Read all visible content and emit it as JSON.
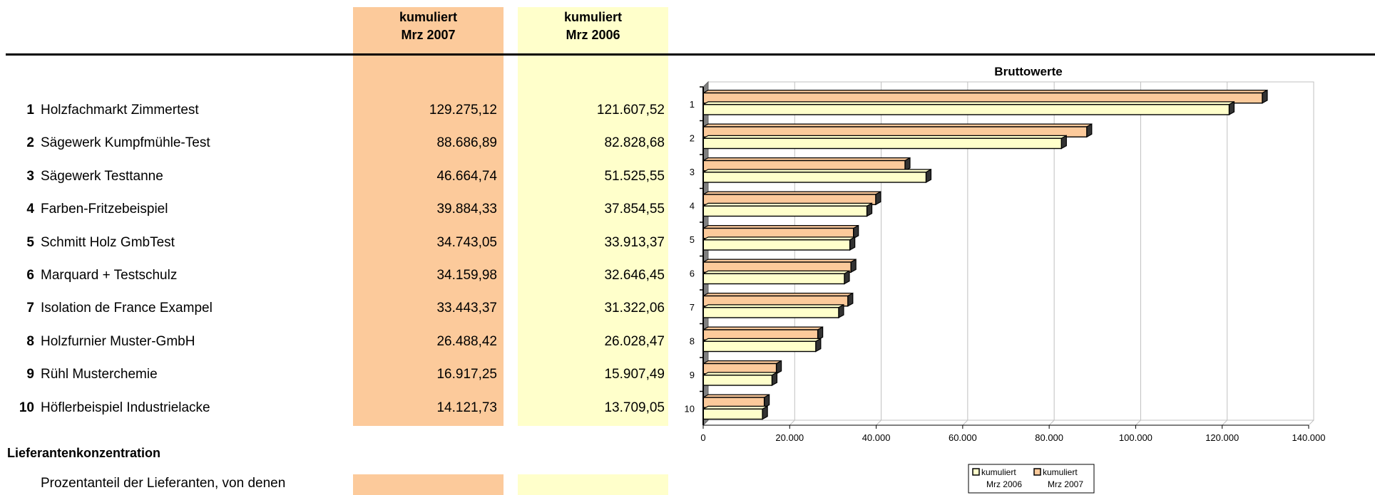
{
  "columns": {
    "col_2007": {
      "line1": "kumuliert",
      "line2": "Mrz 2007"
    },
    "col_2006": {
      "line1": "kumuliert",
      "line2": "Mrz 2006"
    }
  },
  "rows": [
    {
      "rank": "1",
      "name": "Holzfachmarkt Zimmertest",
      "v2007": "129.275,12",
      "v2006": "121.607,52"
    },
    {
      "rank": "2",
      "name": "Sägewerk Kumpfmühle-Test",
      "v2007": "88.686,89",
      "v2006": "82.828,68"
    },
    {
      "rank": "3",
      "name": "Sägewerk Testtanne",
      "v2007": "46.664,74",
      "v2006": "51.525,55"
    },
    {
      "rank": "4",
      "name": "Farben-Fritzebeispiel",
      "v2007": "39.884,33",
      "v2006": "37.854,55"
    },
    {
      "rank": "5",
      "name": "Schmitt Holz GmbTest",
      "v2007": "34.743,05",
      "v2006": "33.913,37"
    },
    {
      "rank": "6",
      "name": "Marquard + Testschulz",
      "v2007": "34.159,98",
      "v2006": "32.646,45"
    },
    {
      "rank": "7",
      "name": "Isolation de France Exampel",
      "v2007": "33.443,37",
      "v2006": "31.322,06"
    },
    {
      "rank": "8",
      "name": "Holzfurnier Muster-GmbH",
      "v2007": "26.488,42",
      "v2006": "26.028,47"
    },
    {
      "rank": "9",
      "name": "Rühl Musterchemie",
      "v2007": "16.917,25",
      "v2006": "15.907,49"
    },
    {
      "rank": "10",
      "name": "Höflerbeispiel Industrielacke",
      "v2007": "14.121,73",
      "v2006": "13.709,05"
    }
  ],
  "section_title": "Lieferantenkonzentration",
  "section_text": "Prozentanteil der Lieferanten, von denen",
  "colors": {
    "series_2007": "#fcca9b",
    "series_2006": "#ffffcb",
    "grid": "#c0c0c0"
  },
  "chart_data": {
    "type": "bar",
    "orientation": "horizontal",
    "title": "Bruttowerte",
    "categories": [
      "1",
      "2",
      "3",
      "4",
      "5",
      "6",
      "7",
      "8",
      "9",
      "10"
    ],
    "series": [
      {
        "name": "kumuliert Mrz 2007",
        "legend_line1": "kumuliert",
        "legend_line2": "Mrz 2007",
        "values": [
          129275.12,
          88686.89,
          46664.74,
          39884.33,
          34743.05,
          34159.98,
          33443.37,
          26488.42,
          16917.25,
          14121.73
        ]
      },
      {
        "name": "kumuliert Mrz 2006",
        "legend_line1": "kumuliert",
        "legend_line2": "Mrz 2006",
        "values": [
          121607.52,
          82828.68,
          51525.55,
          37854.55,
          33913.37,
          32646.45,
          31322.06,
          26028.47,
          15907.49,
          13709.05
        ]
      }
    ],
    "xlim": [
      0,
      140000
    ],
    "xticks": [
      0,
      20000,
      40000,
      60000,
      80000,
      100000,
      120000,
      140000
    ],
    "xtick_labels": [
      "0",
      "20.000",
      "40.000",
      "60.000",
      "80.000",
      "100.000",
      "120.000",
      "140.000"
    ],
    "grid": true,
    "legend_position": "bottom"
  }
}
